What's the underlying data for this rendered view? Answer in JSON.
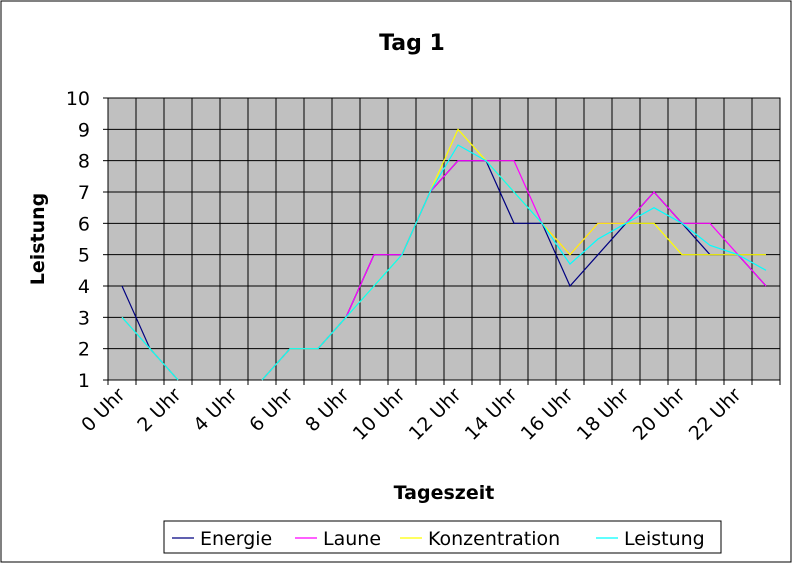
{
  "chart_data": {
    "type": "line",
    "title": "Tag 1",
    "xlabel": "Tageszeit",
    "ylabel": "Leistung",
    "categories": [
      "0 Uhr",
      "1 Uhr",
      "2 Uhr",
      "3 Uhr",
      "4 Uhr",
      "5 Uhr",
      "6 Uhr",
      "7 Uhr",
      "8 Uhr",
      "9 Uhr",
      "10 Uhr",
      "11 Uhr",
      "12 Uhr",
      "13 Uhr",
      "14 Uhr",
      "15 Uhr",
      "16 Uhr",
      "17 Uhr",
      "18 Uhr",
      "19 Uhr",
      "20 Uhr",
      "21 Uhr",
      "22 Uhr",
      "23 Uhr"
    ],
    "tick_labels": [
      "0 Uhr",
      "2 Uhr",
      "4 Uhr",
      "6 Uhr",
      "8 Uhr",
      "10 Uhr",
      "12 Uhr",
      "14 Uhr",
      "16 Uhr",
      "18 Uhr",
      "20 Uhr",
      "22 Uhr"
    ],
    "ylim": [
      1,
      10
    ],
    "yticks": [
      1,
      2,
      3,
      4,
      5,
      6,
      7,
      8,
      9,
      10
    ],
    "grid": true,
    "plot_background": "#c0c0c0",
    "legend_position": "bottom",
    "series": [
      {
        "name": "Energie",
        "color": "#000080",
        "values": [
          4,
          2,
          1,
          null,
          null,
          1,
          2,
          2,
          3,
          5,
          5,
          7,
          8,
          8,
          6,
          6,
          4,
          5,
          6,
          7,
          6,
          5,
          5,
          4
        ]
      },
      {
        "name": "Laune",
        "color": "#ff00ff",
        "values": [
          3,
          2,
          1,
          null,
          null,
          1,
          2,
          2,
          3,
          5,
          5,
          7,
          8,
          8,
          8,
          6,
          5,
          6,
          6,
          7,
          6,
          6,
          5,
          4
        ]
      },
      {
        "name": "Konzentration",
        "color": "#ffff00",
        "values": [
          3,
          2,
          1,
          null,
          null,
          1,
          2,
          2,
          3,
          4,
          5,
          7,
          9,
          8,
          7,
          6,
          5,
          6,
          6,
          6,
          5,
          5,
          5,
          5
        ]
      },
      {
        "name": "Leistung",
        "color": "#00ffff",
        "values": [
          3,
          2,
          1,
          null,
          null,
          1,
          2,
          2,
          3,
          4,
          5,
          7,
          8.5,
          8,
          7,
          6,
          4.7,
          5.5,
          6,
          6.5,
          6,
          5.3,
          5,
          4.5
        ]
      }
    ]
  }
}
